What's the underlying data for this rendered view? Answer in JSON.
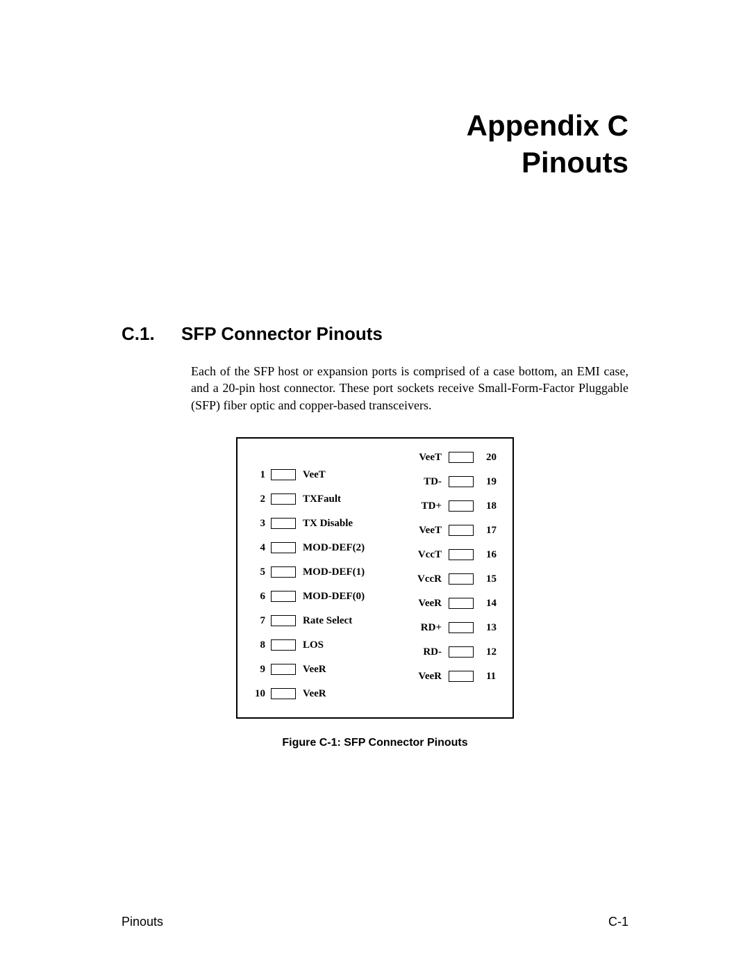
{
  "title": {
    "line1": "Appendix C",
    "line2": "Pinouts"
  },
  "section": {
    "num": "C.1.",
    "heading": "SFP Connector Pinouts"
  },
  "body": "Each of the SFP host or expansion ports is comprised of a case bottom, an EMI case, and a 20-pin host connector.  These port sockets receive Small-Form-Factor Pluggable (SFP) fiber optic and copper-based transceivers.",
  "figure": {
    "caption": "Figure C-1: SFP Connector Pinouts",
    "box_border_color": "#000000",
    "box_bg_color": "#ffffff",
    "pin_rect_border": "#000000",
    "left_pins": [
      {
        "num": "1",
        "label": "VeeT"
      },
      {
        "num": "2",
        "label": "TXFault"
      },
      {
        "num": "3",
        "label": "TX Disable"
      },
      {
        "num": "4",
        "label": "MOD-DEF(2)"
      },
      {
        "num": "5",
        "label": "MOD-DEF(1)"
      },
      {
        "num": "6",
        "label": "MOD-DEF(0)"
      },
      {
        "num": "7",
        "label": "Rate Select"
      },
      {
        "num": "8",
        "label": "LOS"
      },
      {
        "num": "9",
        "label": "VeeR"
      },
      {
        "num": "10",
        "label": "VeeR"
      }
    ],
    "right_pins": [
      {
        "num": "20",
        "label": "VeeT"
      },
      {
        "num": "19",
        "label": "TD-"
      },
      {
        "num": "18",
        "label": "TD+"
      },
      {
        "num": "17",
        "label": "VeeT"
      },
      {
        "num": "16",
        "label": "VccT"
      },
      {
        "num": "15",
        "label": "VccR"
      },
      {
        "num": "14",
        "label": "VeeR"
      },
      {
        "num": "13",
        "label": "RD+"
      },
      {
        "num": "12",
        "label": "RD-"
      },
      {
        "num": "11",
        "label": "VeeR"
      }
    ]
  },
  "footer": {
    "left": "Pinouts",
    "right": "C-1"
  },
  "colors": {
    "text": "#000000",
    "background": "#ffffff"
  },
  "typography": {
    "title_fontsize": 42,
    "section_fontsize": 26,
    "body_fontsize": 18,
    "pin_fontsize": 15,
    "caption_fontsize": 16,
    "footer_fontsize": 18
  }
}
